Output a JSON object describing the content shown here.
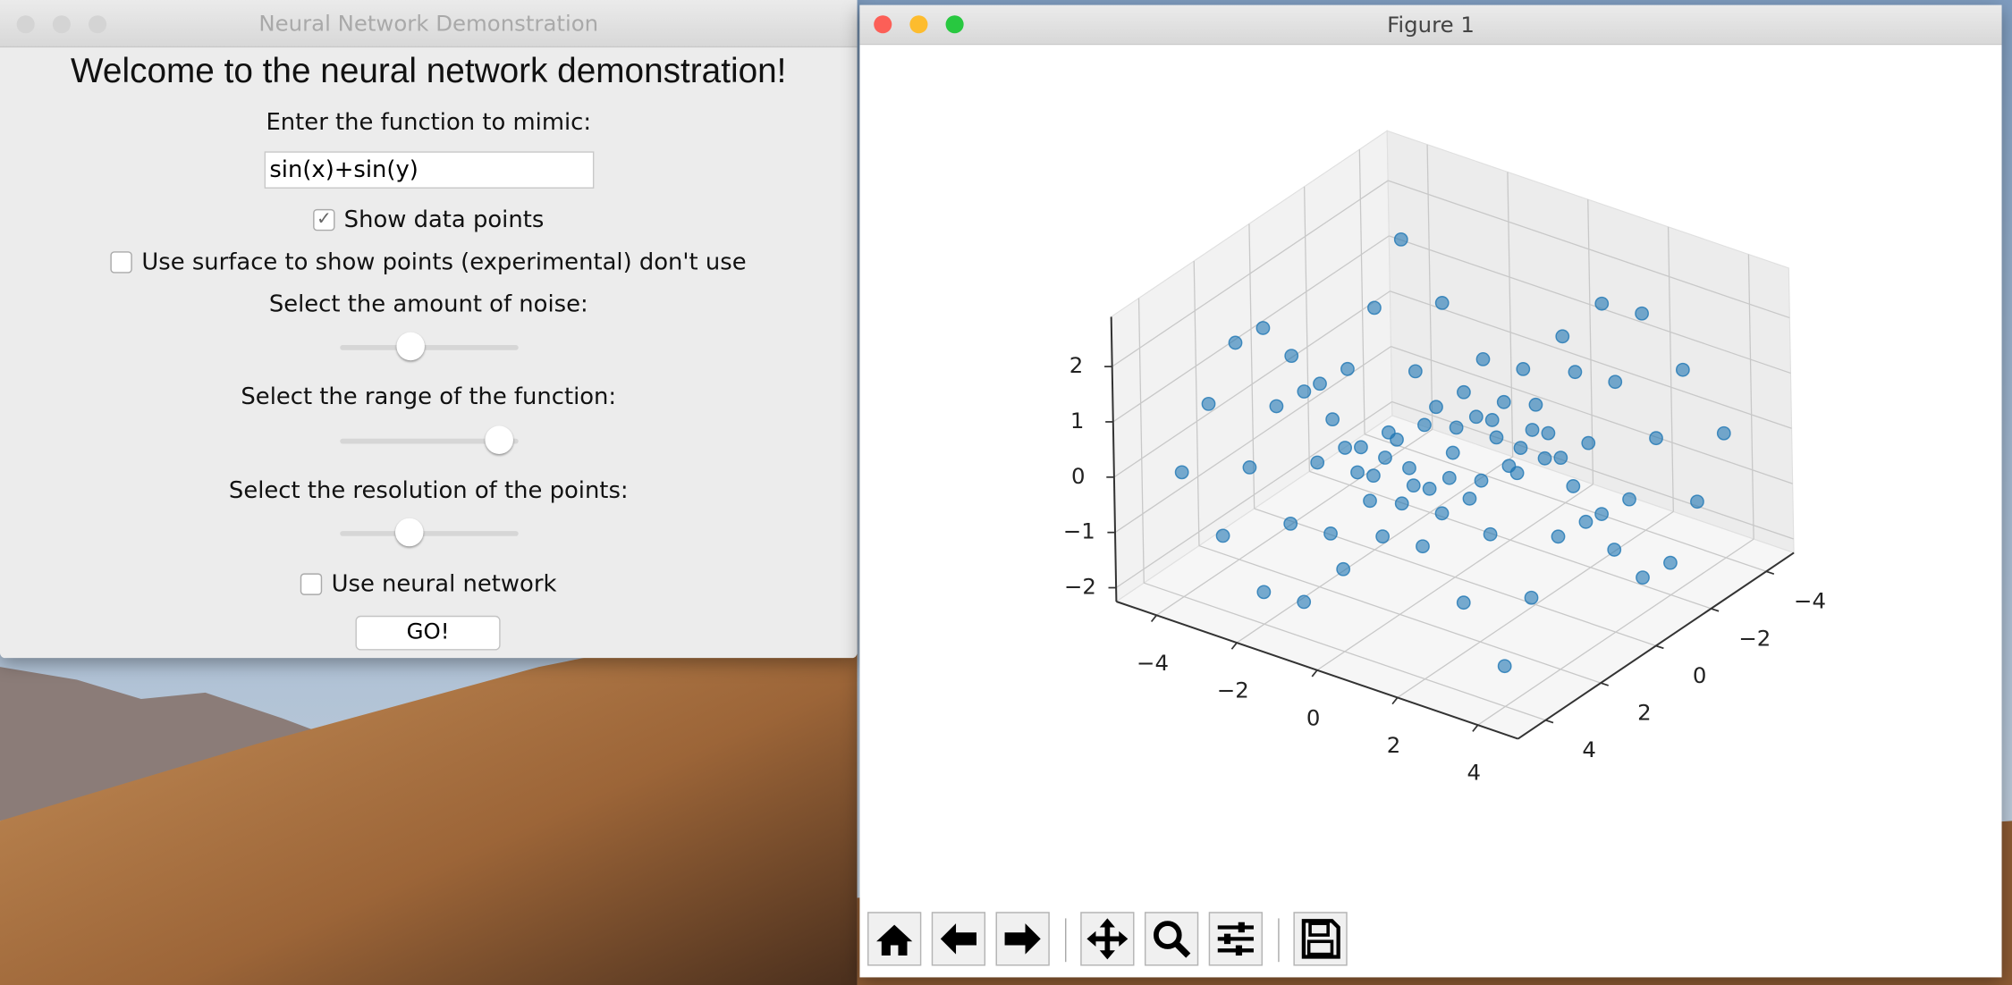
{
  "left_window": {
    "title": "Neural Network Demonstration",
    "heading": "Welcome to the neural network demonstration!",
    "function_label": "Enter the function to mimic:",
    "function_value": "sin(x)+sin(y)",
    "show_points": {
      "label": "Show data points",
      "checked": true
    },
    "use_surface": {
      "label": "Use surface to show points (experimental) don't use",
      "checked": false
    },
    "noise_label": "Select the amount of noise:",
    "range_label": "Select the range of the function:",
    "resolution_label": "Select the resolution of the points:",
    "use_nn": {
      "label": "Use neural network",
      "checked": false
    },
    "go_button": "GO!"
  },
  "right_window": {
    "title": "Figure 1"
  },
  "chart_data": {
    "type": "scatter3d",
    "color": "#1f77b4",
    "x": [
      -4,
      -3,
      -2,
      -1,
      0,
      1,
      2,
      3,
      4
    ],
    "y": [
      -4,
      -3,
      -2,
      -1,
      0,
      1,
      2,
      3,
      4
    ],
    "z": [
      [
        1.52,
        0.62,
        -0.15,
        -0.08,
        0.76,
        1.6,
        1.67,
        0.9,
        0
      ],
      [
        0.62,
        -0.28,
        -1.05,
        -0.98,
        -0.14,
        0.7,
        0.77,
        0,
        -0.9
      ],
      [
        -0.15,
        -1.05,
        -1.82,
        -1.75,
        -0.91,
        -0.07,
        0,
        -0.77,
        -1.67
      ],
      [
        -0.08,
        -0.98,
        -1.75,
        -1.68,
        -0.84,
        0,
        0.07,
        -0.7,
        -1.6
      ],
      [
        0.76,
        -0.14,
        -0.91,
        -0.84,
        0,
        0.84,
        0.91,
        0.14,
        -0.76
      ],
      [
        1.6,
        0.7,
        -0.07,
        0,
        0.84,
        1.68,
        1.75,
        0.98,
        0.08
      ],
      [
        1.67,
        0.77,
        0,
        0.07,
        0.91,
        1.75,
        1.82,
        1.05,
        0.15
      ],
      [
        0.9,
        0,
        -0.77,
        -0.7,
        0.14,
        0.98,
        1.05,
        0.28,
        -0.62
      ],
      [
        0,
        -0.9,
        -1.67,
        -1.6,
        -0.76,
        0.08,
        0.15,
        -0.62,
        -1.52
      ]
    ],
    "xlim": [
      -5,
      5
    ],
    "ylim": [
      -5,
      5
    ],
    "zlim": [
      -2.25,
      2.9
    ],
    "xticks": [
      {
        "value": -4,
        "label": "−4"
      },
      {
        "value": -2,
        "label": "−2"
      },
      0,
      2,
      4
    ],
    "yticks": [
      {
        "value": -4,
        "label": "−4"
      },
      {
        "value": -2,
        "label": "−2"
      },
      0,
      2,
      4
    ],
    "zticks": [
      {
        "value": -2,
        "label": "−2"
      },
      {
        "value": -1,
        "label": "−1"
      },
      0,
      1,
      2
    ],
    "grid": true
  }
}
